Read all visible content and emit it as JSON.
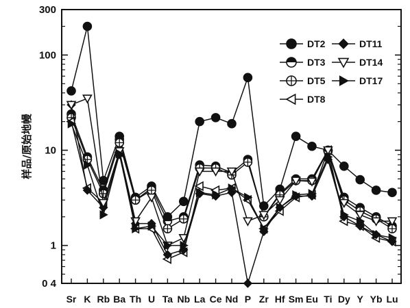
{
  "chart_data": {
    "type": "line",
    "yscale": "log",
    "ylim": [
      0.4,
      300
    ],
    "ylabel": "样品/原始地幔",
    "xlabel": "",
    "yticks": [
      {
        "value": 300,
        "label": "300"
      },
      {
        "value": 100,
        "label": "100"
      },
      {
        "value": 10,
        "label": "10"
      },
      {
        "value": 1,
        "label": "1"
      },
      {
        "value": 0.4,
        "label": "0 4"
      }
    ],
    "categories": [
      "Sr",
      "K",
      "Rb",
      "Ba",
      "Th",
      "U",
      "Ta",
      "Nb",
      "La",
      "Ce",
      "Nd",
      "P",
      "Zr",
      "Hf",
      "Sm",
      "Eu",
      "Ti",
      "Dy",
      "Y",
      "Yb",
      "Lu"
    ],
    "legend_position": "top-right",
    "grid": false,
    "series": [
      {
        "name": "DT2",
        "marker": "filled-circle",
        "values": [
          42,
          200,
          4.8,
          14,
          3.2,
          4.2,
          2.0,
          2.9,
          20,
          22,
          19,
          58,
          2.6,
          3.9,
          14,
          11,
          10,
          6.8,
          4.9,
          3.8,
          3.6
        ]
      },
      {
        "name": "DT3",
        "marker": "half-circle",
        "values": [
          24,
          8.5,
          3.8,
          13,
          3.0,
          4.0,
          1.8,
          2.0,
          7.0,
          6.8,
          5.8,
          8.0,
          2.0,
          3.5,
          5.0,
          5.0,
          10,
          3.2,
          2.5,
          2.0,
          1.6
        ]
      },
      {
        "name": "DT5",
        "marker": "circle-plus",
        "values": [
          22,
          8.0,
          3.5,
          12,
          3.0,
          3.8,
          1.5,
          1.9,
          6.5,
          6.5,
          5.5,
          7.5,
          2.0,
          3.4,
          4.8,
          4.8,
          9.8,
          3.0,
          2.3,
          1.9,
          1.5
        ]
      },
      {
        "name": "DT8",
        "marker": "open-triangle-left",
        "values": [
          20,
          4.0,
          2.8,
          9.5,
          1.5,
          1.5,
          0.72,
          0.85,
          4.2,
          3.8,
          4.0,
          3.0,
          1.5,
          2.3,
          3.2,
          3.4,
          10,
          1.8,
          1.6,
          1.2,
          1.1
        ]
      },
      {
        "name": "DT11",
        "marker": "filled-diamond",
        "values": [
          30,
          3.8,
          2.5,
          9.0,
          1.7,
          1.7,
          0.8,
          0.9,
          3.5,
          3.3,
          3.6,
          0.4,
          1.4,
          2.5,
          3.3,
          3.3,
          8.0,
          2.0,
          1.6,
          1.3,
          1.1
        ]
      },
      {
        "name": "DT14",
        "marker": "open-triangle-down",
        "values": [
          30,
          35,
          2.8,
          9.8,
          1.8,
          3.2,
          1.0,
          1.2,
          6.0,
          6.0,
          6.0,
          1.8,
          2.1,
          3.0,
          4.8,
          4.7,
          10,
          2.8,
          2.1,
          1.8,
          1.8
        ]
      },
      {
        "name": "DT17",
        "marker": "filled-triangle-right",
        "values": [
          19,
          7.0,
          2.1,
          9.2,
          1.5,
          1.6,
          1.0,
          1.0,
          3.6,
          3.4,
          4.0,
          3.2,
          1.5,
          2.5,
          3.4,
          3.5,
          8.5,
          2.1,
          1.8,
          1.3,
          1.2
        ]
      }
    ]
  }
}
